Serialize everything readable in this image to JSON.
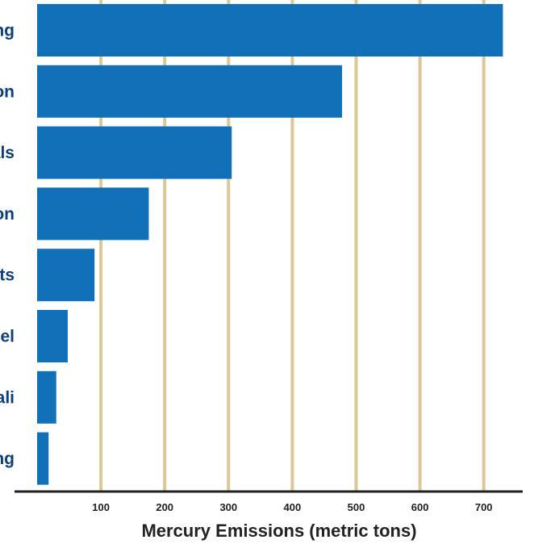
{
  "chart_data": {
    "type": "bar",
    "orientation": "horizontal",
    "categories": [
      "ng",
      "on",
      "als",
      "on",
      "cts",
      "eel",
      "ali",
      "ng"
    ],
    "values": [
      730,
      478,
      305,
      175,
      90,
      48,
      30,
      18
    ],
    "xlabel": "Mercury Emissions (metric tons)",
    "ylabel": "",
    "xlim": [
      0,
      740
    ],
    "x_ticks": [
      100,
      200,
      300,
      400,
      500,
      600,
      700
    ],
    "grid": "vertical",
    "colors": {
      "bar": "#1170b8",
      "grid": "#dcc896",
      "category_text": "#0f3f7a",
      "axis": "#222222"
    }
  }
}
